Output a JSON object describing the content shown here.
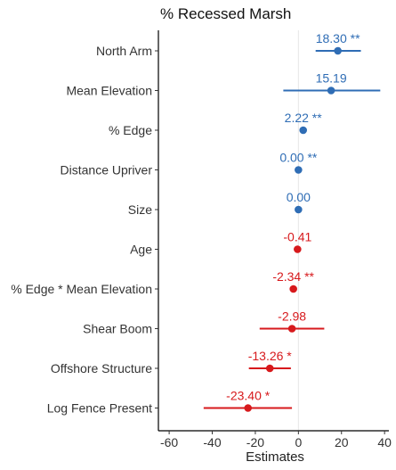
{
  "chart_data": {
    "type": "forest",
    "title": "% Recessed Marsh",
    "xlabel": "Estimates",
    "xlim": [
      -65,
      42
    ],
    "xticks": [
      -60,
      -40,
      -20,
      0,
      20,
      40
    ],
    "xtick_labels": [
      "-60",
      "-40",
      "-20",
      "0",
      "20",
      "40"
    ],
    "reference_line": 0,
    "colors": {
      "positive": "#2f6db5",
      "negative": "#d7191c"
    },
    "terms": [
      {
        "term": "North Arm",
        "estimate": 18.3,
        "ci_low": 8,
        "ci_high": 29,
        "label": "18.30 **",
        "sign": "positive"
      },
      {
        "term": "Mean Elevation",
        "estimate": 15.19,
        "ci_low": -7,
        "ci_high": 38,
        "label": "15.19",
        "sign": "positive"
      },
      {
        "term": "% Edge",
        "estimate": 2.22,
        "ci_low": 1,
        "ci_high": 3.4,
        "label": "2.22 **",
        "sign": "positive"
      },
      {
        "term": "Distance Upriver",
        "estimate": 0.0,
        "ci_low": -0.3,
        "ci_high": 0.3,
        "label": "0.00 **",
        "sign": "positive"
      },
      {
        "term": "Size",
        "estimate": 0.0,
        "ci_low": -0.3,
        "ci_high": 0.3,
        "label": "0.00",
        "sign": "positive"
      },
      {
        "term": "Age",
        "estimate": -0.41,
        "ci_low": -1,
        "ci_high": 0.2,
        "label": "-0.41",
        "sign": "negative"
      },
      {
        "term": "% Edge * Mean Elevation",
        "estimate": -2.34,
        "ci_low": -3.5,
        "ci_high": -1.2,
        "label": "-2.34 **",
        "sign": "negative"
      },
      {
        "term": "Shear Boom",
        "estimate": -2.98,
        "ci_low": -18,
        "ci_high": 12,
        "label": "-2.98",
        "sign": "negative"
      },
      {
        "term": "Offshore Structure",
        "estimate": -13.26,
        "ci_low": -23,
        "ci_high": -3.5,
        "label": "-13.26 *",
        "sign": "negative"
      },
      {
        "term": "Log Fence Present",
        "estimate": -23.4,
        "ci_low": -44,
        "ci_high": -3,
        "label": "-23.40 *",
        "sign": "negative"
      }
    ]
  }
}
